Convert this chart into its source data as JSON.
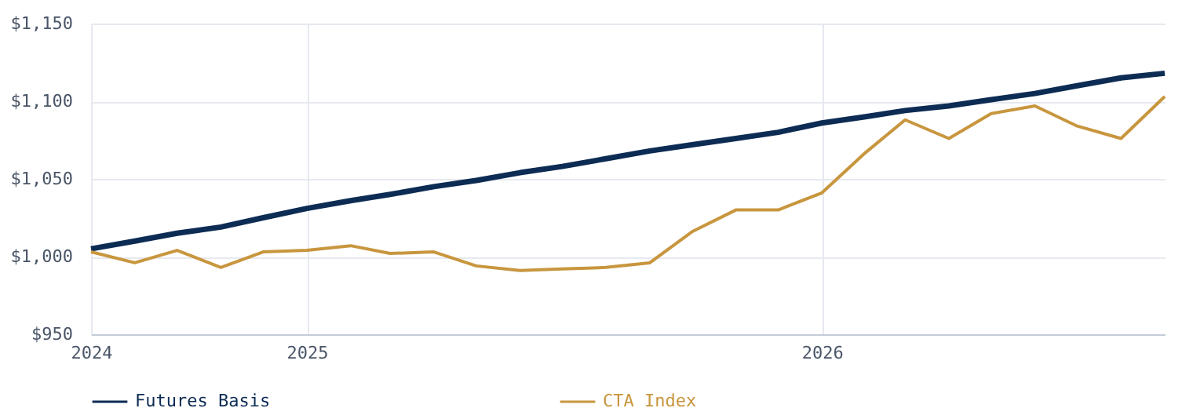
{
  "chart_data": {
    "type": "line",
    "x": [
      "2024-08",
      "2024-09",
      "2024-10",
      "2024-11",
      "2024-12",
      "2025-01",
      "2025-02",
      "2025-03",
      "2025-04",
      "2025-05",
      "2025-06",
      "2025-07",
      "2025-08",
      "2025-09",
      "2025-10",
      "2025-11",
      "2025-12",
      "2026-01",
      "2026-02",
      "2026-03",
      "2026-04",
      "2026-05",
      "2026-06",
      "2026-07",
      "2026-08",
      "2026-09"
    ],
    "series": [
      {
        "name": "Futures Basis",
        "color": "#0d2c54",
        "values": [
          1005,
          1010,
          1015,
          1019,
          1025,
          1031,
          1036,
          1040,
          1045,
          1049,
          1054,
          1058,
          1063,
          1068,
          1072,
          1076,
          1080,
          1086,
          1090,
          1094,
          1097,
          1101,
          1105,
          1110,
          1115,
          1118
        ]
      },
      {
        "name": "CTA Index",
        "color": "#c8963e",
        "values": [
          1003,
          996,
          1004,
          993,
          1003,
          1004,
          1007,
          1002,
          1003,
          994,
          991,
          992,
          993,
          996,
          1016,
          1030,
          1030,
          1041,
          1067,
          1088,
          1076,
          1092,
          1097,
          1084,
          1076,
          1103
        ]
      }
    ],
    "xlim": [
      "2024-08",
      "2026-09"
    ],
    "xticks": [
      {
        "value": "2024-08",
        "label": "2024"
      },
      {
        "value": "2025-01",
        "label": "2025"
      },
      {
        "value": "2026-01",
        "label": "2026"
      }
    ],
    "ylim": [
      950,
      1150
    ],
    "yticks": [
      {
        "value": 950,
        "label": "$950"
      },
      {
        "value": 1000,
        "label": "$1,000"
      },
      {
        "value": 1050,
        "label": "$1,050"
      },
      {
        "value": 1100,
        "label": "$1,100"
      },
      {
        "value": 1150,
        "label": "$1,150"
      }
    ],
    "grid": true,
    "legend": "bottom"
  }
}
